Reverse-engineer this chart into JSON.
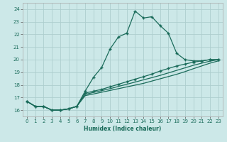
{
  "xlabel": "Humidex (Indice chaleur)",
  "bg_color": "#cce8e8",
  "grid_color": "#b0d0d0",
  "line_color": "#1a6b5a",
  "xlim": [
    -0.5,
    23.5
  ],
  "ylim": [
    15.5,
    24.5
  ],
  "xticks": [
    0,
    1,
    2,
    3,
    4,
    5,
    6,
    7,
    8,
    9,
    10,
    11,
    12,
    13,
    14,
    15,
    16,
    17,
    18,
    19,
    20,
    21,
    22,
    23
  ],
  "yticks": [
    16,
    17,
    18,
    19,
    20,
    21,
    22,
    23,
    24
  ],
  "line1_x": [
    0,
    1,
    2,
    3,
    4,
    5,
    6,
    7,
    8,
    9,
    10,
    11,
    12,
    13,
    14,
    15,
    16,
    17,
    18,
    19,
    20,
    21,
    22,
    23
  ],
  "line1_y": [
    16.7,
    16.3,
    16.3,
    16.0,
    16.0,
    16.1,
    16.3,
    17.5,
    18.6,
    19.4,
    20.85,
    21.8,
    22.1,
    23.85,
    23.3,
    23.4,
    22.7,
    22.1,
    20.5,
    20.0,
    19.9,
    19.9,
    20.0,
    20.0
  ],
  "line2_x": [
    0,
    1,
    2,
    3,
    4,
    5,
    6,
    7,
    8,
    9,
    10,
    11,
    12,
    13,
    14,
    15,
    16,
    17,
    18,
    19,
    20,
    21,
    22,
    23
  ],
  "line2_y": [
    16.7,
    16.3,
    16.3,
    16.0,
    16.0,
    16.1,
    16.3,
    17.35,
    17.5,
    17.65,
    17.85,
    18.05,
    18.25,
    18.45,
    18.65,
    18.85,
    19.1,
    19.3,
    19.5,
    19.65,
    19.8,
    19.9,
    20.0,
    20.0
  ],
  "line3_x": [
    0,
    1,
    2,
    3,
    4,
    5,
    6,
    7,
    8,
    9,
    10,
    11,
    12,
    13,
    14,
    15,
    16,
    17,
    18,
    19,
    20,
    21,
    22,
    23
  ],
  "line3_y": [
    16.7,
    16.3,
    16.3,
    16.0,
    16.0,
    16.1,
    16.3,
    17.25,
    17.4,
    17.55,
    17.7,
    17.88,
    18.05,
    18.22,
    18.4,
    18.57,
    18.75,
    18.95,
    19.15,
    19.35,
    19.55,
    19.72,
    19.88,
    20.0
  ],
  "line4_x": [
    0,
    1,
    2,
    3,
    4,
    5,
    6,
    7,
    8,
    9,
    10,
    11,
    12,
    13,
    14,
    15,
    16,
    17,
    18,
    19,
    20,
    21,
    22,
    23
  ],
  "line4_y": [
    16.7,
    16.3,
    16.3,
    16.0,
    16.0,
    16.1,
    16.3,
    17.15,
    17.28,
    17.42,
    17.56,
    17.7,
    17.84,
    17.98,
    18.12,
    18.3,
    18.48,
    18.66,
    18.84,
    19.05,
    19.28,
    19.5,
    19.72,
    19.9
  ]
}
